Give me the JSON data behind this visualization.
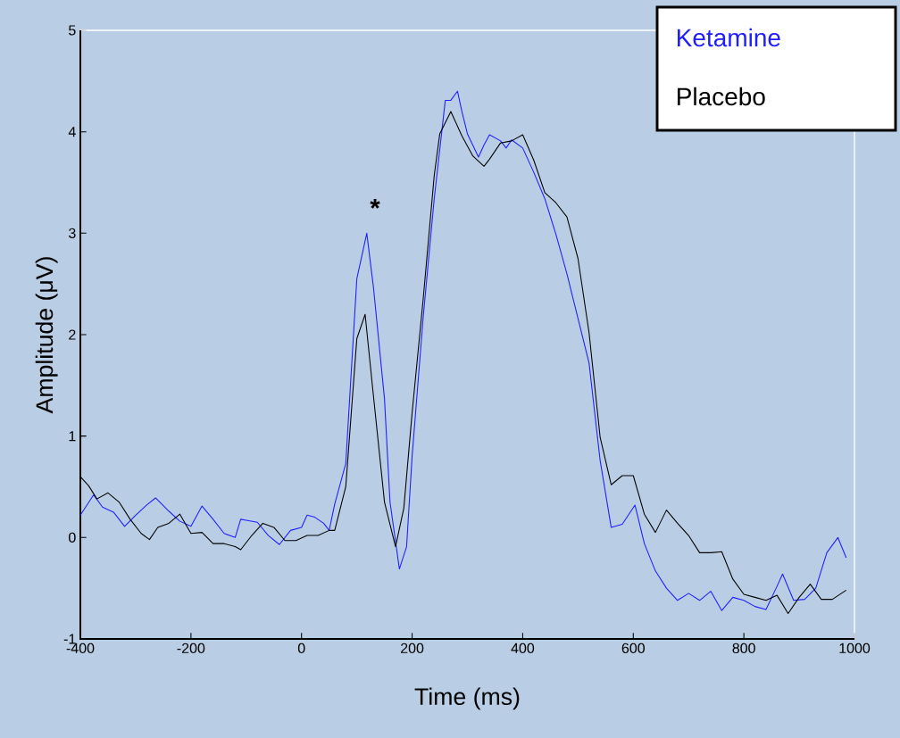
{
  "chart_data": {
    "type": "line",
    "xlabel": "Time (ms)",
    "ylabel": "Amplitude (μV)",
    "xlim": [
      -400,
      1000
    ],
    "ylim": [
      -1,
      5
    ],
    "xticks": [
      -400,
      -200,
      0,
      200,
      400,
      600,
      800,
      1000
    ],
    "yticks": [
      -1,
      0,
      1,
      2,
      3,
      4,
      5
    ],
    "grid": false,
    "legend": "top right",
    "marker": "none",
    "line_style": "solid",
    "annotations": [
      "*"
    ],
    "series": [
      {
        "name": "Ketamine",
        "color": "#1f1fff",
        "x": [
          -400,
          -376,
          -360,
          -340,
          -320,
          -300,
          -280,
          -264,
          -240,
          -220,
          -200,
          -180,
          -160,
          -140,
          -120,
          -110,
          -100,
          -80,
          -60,
          -40,
          -20,
          0,
          10,
          24,
          40,
          50,
          60,
          80,
          100,
          118,
          130,
          150,
          160,
          177,
          190,
          200,
          220,
          240,
          260,
          270,
          282,
          290,
          300,
          320,
          330,
          340,
          360,
          370,
          380,
          400,
          420,
          440,
          460,
          480,
          500,
          520,
          540,
          560,
          580,
          603,
          620,
          640,
          660,
          680,
          700,
          720,
          740,
          760,
          780,
          800,
          820,
          840,
          860,
          870,
          890,
          910,
          930,
          950,
          970,
          985
        ],
        "values": [
          0.22,
          0.42,
          0.3,
          0.25,
          0.11,
          0.22,
          0.32,
          0.39,
          0.26,
          0.16,
          0.11,
          0.31,
          0.18,
          0.04,
          0.0,
          0.18,
          0.17,
          0.15,
          0.02,
          -0.07,
          0.07,
          0.1,
          0.22,
          0.2,
          0.14,
          0.07,
          0.33,
          0.73,
          2.55,
          3.0,
          2.47,
          1.37,
          0.35,
          -0.31,
          -0.09,
          0.8,
          2.17,
          3.34,
          4.31,
          4.31,
          4.4,
          4.2,
          3.98,
          3.75,
          3.87,
          3.97,
          3.91,
          3.84,
          3.92,
          3.84,
          3.6,
          3.34,
          2.99,
          2.6,
          2.16,
          1.72,
          0.76,
          0.1,
          0.13,
          0.32,
          -0.06,
          -0.33,
          -0.5,
          -0.62,
          -0.55,
          -0.62,
          -0.53,
          -0.72,
          -0.59,
          -0.62,
          -0.68,
          -0.71,
          -0.48,
          -0.36,
          -0.62,
          -0.61,
          -0.5,
          -0.15,
          0.0,
          -0.2
        ]
      },
      {
        "name": "Placebo",
        "color": "#000000",
        "x": [
          -400,
          -385,
          -370,
          -350,
          -330,
          -310,
          -290,
          -275,
          -260,
          -240,
          -220,
          -200,
          -180,
          -160,
          -140,
          -120,
          -110,
          -90,
          -70,
          -50,
          -30,
          -10,
          10,
          30,
          50,
          60,
          80,
          100,
          115,
          130,
          150,
          170,
          185,
          200,
          220,
          240,
          250,
          270,
          290,
          310,
          330,
          340,
          360,
          380,
          400,
          420,
          440,
          460,
          480,
          500,
          520,
          540,
          560,
          580,
          600,
          620,
          640,
          660,
          680,
          700,
          720,
          740,
          760,
          780,
          800,
          820,
          840,
          860,
          880,
          900,
          920,
          940,
          960,
          985
        ],
        "values": [
          0.6,
          0.51,
          0.38,
          0.44,
          0.35,
          0.18,
          0.04,
          -0.02,
          0.1,
          0.14,
          0.23,
          0.04,
          0.05,
          -0.06,
          -0.06,
          -0.09,
          -0.12,
          0.02,
          0.14,
          0.1,
          -0.03,
          -0.03,
          0.02,
          0.02,
          0.07,
          0.07,
          0.5,
          1.96,
          2.2,
          1.4,
          0.35,
          -0.09,
          0.29,
          1.23,
          2.35,
          3.57,
          3.98,
          4.2,
          3.96,
          3.76,
          3.66,
          3.73,
          3.89,
          3.91,
          3.97,
          3.72,
          3.4,
          3.3,
          3.16,
          2.75,
          2.02,
          0.99,
          0.52,
          0.61,
          0.61,
          0.23,
          0.05,
          0.27,
          0.14,
          0.02,
          -0.15,
          -0.15,
          -0.14,
          -0.41,
          -0.56,
          -0.59,
          -0.62,
          -0.57,
          -0.75,
          -0.59,
          -0.46,
          -0.61,
          -0.61,
          -0.52
        ]
      }
    ]
  }
}
